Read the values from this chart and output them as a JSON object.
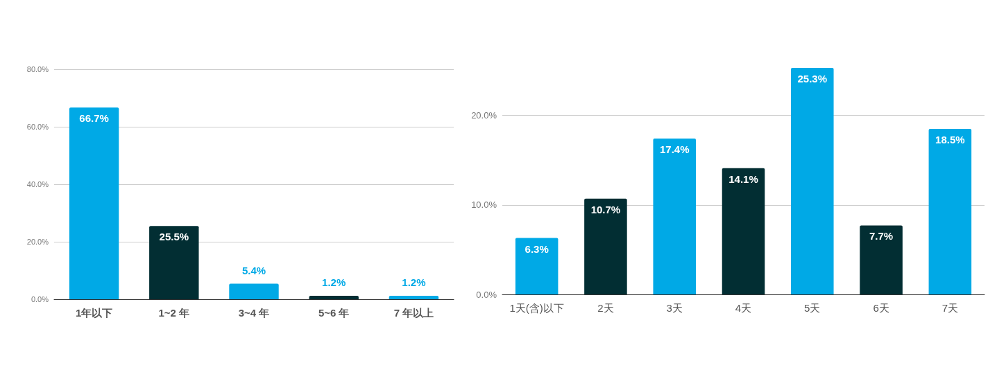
{
  "chart_data": [
    {
      "type": "bar",
      "categories": [
        "1年以下",
        "1~2 年",
        "3~4 年",
        "5~6 年",
        "7 年以上"
      ],
      "values": [
        66.7,
        25.5,
        5.4,
        1.2,
        1.2
      ],
      "colors": [
        "#00a9e6",
        "#022e33",
        "#00a9e6",
        "#022e33",
        "#00a9e6"
      ],
      "value_labels": [
        "66.7%",
        "25.5%",
        "5.4%",
        "1.2%",
        "1.2%"
      ],
      "ylim": [
        0,
        80
      ],
      "yticks": [
        {
          "value": 0,
          "label": "0.0%"
        },
        {
          "value": 20,
          "label": "20.0%"
        },
        {
          "value": 40,
          "label": "40.0%"
        },
        {
          "value": 60,
          "label": "60.0%"
        },
        {
          "value": 80,
          "label": "80.0%"
        }
      ],
      "grid": "y"
    },
    {
      "type": "bar",
      "categories": [
        "1天(含)以下",
        "2天",
        "3天",
        "4天",
        "5天",
        "6天",
        "7天"
      ],
      "values": [
        6.3,
        10.7,
        17.4,
        14.1,
        25.3,
        7.7,
        18.5
      ],
      "colors": [
        "#00a9e6",
        "#022e33",
        "#00a9e6",
        "#022e33",
        "#00a9e6",
        "#022e33",
        "#00a9e6"
      ],
      "value_labels": [
        "6.3%",
        "10.7%",
        "17.4%",
        "14.1%",
        "25.3%",
        "7.7%",
        "18.5%"
      ],
      "ylim": [
        0,
        25.3
      ],
      "yticks": [
        {
          "value": 0,
          "label": "0.0%"
        },
        {
          "value": 10,
          "label": "10.0%"
        },
        {
          "value": 20,
          "label": "20.0%"
        }
      ],
      "grid": "y"
    }
  ]
}
